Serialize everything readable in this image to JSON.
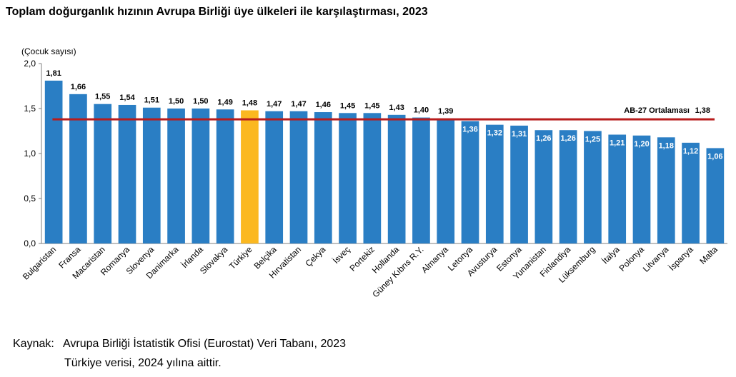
{
  "title": "Toplam doğurganlık hızının Avrupa Birliği üye ülkeleri ile karşılaştırması, 2023",
  "source": {
    "label": "Kaynak:",
    "text": "Avrupa Birliği İstatistik Ofisi (Eurostat) Veri Tabanı, 2023",
    "note": "Türkiye verisi, 2024 yılına aittir."
  },
  "chart_data": {
    "type": "bar",
    "ylabel": "(Çocuk sayısı)",
    "ylim": [
      0,
      2.0
    ],
    "yticks": [
      "0,0",
      "0,5",
      "1,0",
      "1,5",
      "2,0"
    ],
    "grid": false,
    "categories": [
      "Bulgaristan",
      "Fransa",
      "Macaristan",
      "Romanya",
      "Slovenya",
      "Danimarka",
      "İrlanda",
      "Slovakya",
      "Türkiye",
      "Belçika",
      "Hırvatistan",
      "Çekya",
      "İsveç",
      "Portekiz",
      "Hollanda",
      "Güney Kıbrıs R.Y.",
      "Almanya",
      "Letonya",
      "Avusturya",
      "Estonya",
      "Yunanistan",
      "Finlandiya",
      "Lüksemburg",
      "İtalya",
      "Polonya",
      "Litvanya",
      "İspanya",
      "Malta"
    ],
    "values": [
      1.81,
      1.66,
      1.55,
      1.54,
      1.51,
      1.5,
      1.5,
      1.49,
      1.48,
      1.47,
      1.47,
      1.46,
      1.45,
      1.45,
      1.43,
      1.4,
      1.39,
      1.36,
      1.32,
      1.31,
      1.26,
      1.26,
      1.25,
      1.21,
      1.2,
      1.18,
      1.12,
      1.06
    ],
    "value_labels": [
      "1,81",
      "1,66",
      "1,55",
      "1,54",
      "1,51",
      "1,50",
      "1,50",
      "1,49",
      "1,48",
      "1,47",
      "1,47",
      "1,46",
      "1,45",
      "1,45",
      "1,43",
      "1,40",
      "1,39",
      "1,36",
      "1,32",
      "1,31",
      "1,26",
      "1,26",
      "1,25",
      "1,21",
      "1,20",
      "1,18",
      "1,12",
      "1,06"
    ],
    "highlight": "Türkiye",
    "reference_line": {
      "label": "AB-27 Ortalaması",
      "value": 1.38,
      "value_label": "1,38",
      "color": "#b81c1c"
    },
    "colors": {
      "bar": "#2a7ec4",
      "highlight": "#fbb820"
    }
  }
}
